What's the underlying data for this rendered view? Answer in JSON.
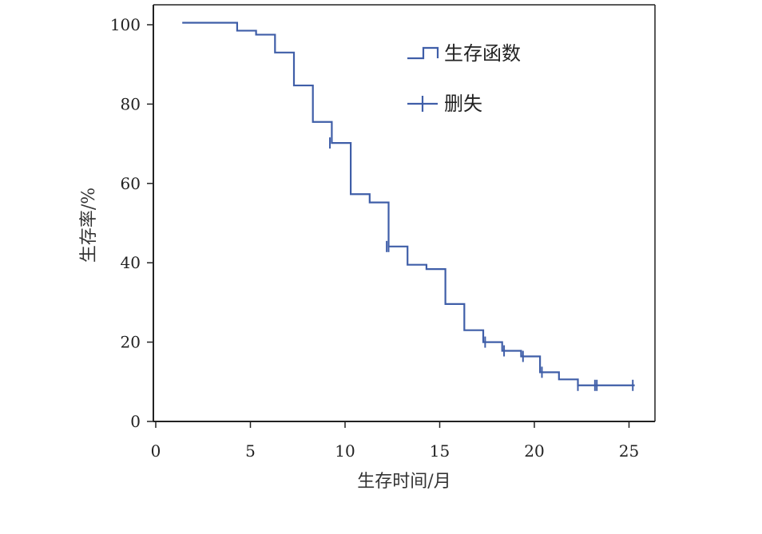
{
  "chart_data": {
    "type": "line",
    "title": "",
    "xlabel": "生存时间/月",
    "ylabel": "生存率/%",
    "xlim": [
      0,
      26.5
    ],
    "ylim": [
      0,
      100
    ],
    "x_ticks": [
      "0",
      "5",
      "10",
      "15",
      "20",
      "25"
    ],
    "y_ticks": [
      "0",
      "20",
      "40",
      "60",
      "80",
      "100"
    ],
    "grid": false,
    "legend_position": "top-right",
    "colors": {
      "line": "#3f5ea8",
      "axis": "#222222"
    },
    "series": [
      {
        "name": "生存函数",
        "x": [
          1.4,
          4.3,
          5.3,
          6.3,
          7.3,
          8.3,
          9.3,
          10.3,
          11.3,
          12.3,
          13.3,
          14.3,
          15.3,
          16.3,
          17.3,
          18.3,
          19.3,
          20.3,
          21.3,
          22.3,
          25.3
        ],
        "y": [
          100.5,
          98.5,
          97.5,
          93,
          84.7,
          75.5,
          70.2,
          57.3,
          55.2,
          44.1,
          39.5,
          38.4,
          29.6,
          23,
          20,
          17.8,
          16.4,
          12.4,
          10.6,
          9.1,
          9.1
        ]
      },
      {
        "name": "删失",
        "x": [
          9.2,
          12.2,
          12.3,
          17.4,
          18.4,
          19.4,
          20.4,
          22.3,
          23.2,
          23.3,
          25.2
        ],
        "y": [
          70.2,
          44.1,
          44.1,
          20,
          17.8,
          16.4,
          12.4,
          9.1,
          9.1,
          9.1,
          9.1
        ]
      }
    ]
  }
}
